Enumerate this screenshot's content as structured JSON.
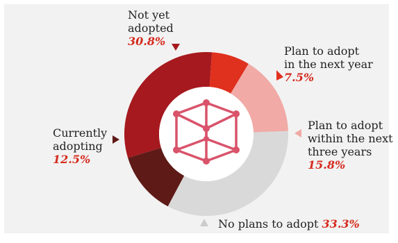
{
  "chart_data": {
    "type": "pie",
    "variant": "donut",
    "title": "",
    "center_icon": "cube-icon",
    "slices": [
      {
        "label": "Not yet adopted",
        "value": 30.8,
        "display": "30.8%",
        "color": "#a6191e"
      },
      {
        "label": "Plan to adopt in the next year",
        "value": 7.5,
        "display": "7.5%",
        "color": "#e0301e"
      },
      {
        "label": "Plan to adopt within the next three years",
        "value": 15.8,
        "display": "15.8%",
        "color": "#f1aaa6"
      },
      {
        "label": "No plans to adopt",
        "value": 33.3,
        "display": "33.3%",
        "color": "#d9d9d9"
      },
      {
        "label": "Currently adopting",
        "value": 12.5,
        "display": "12.5%",
        "color": "#5e1a17"
      }
    ]
  },
  "labels": {
    "not_yet": {
      "lines": [
        "Not yet",
        "adopted"
      ],
      "pct": "30.8%"
    },
    "next_year": {
      "lines": [
        "Plan to adopt",
        "in the next year"
      ],
      "pct": "7.5%"
    },
    "three_years": {
      "lines": [
        "Plan to adopt",
        "within the next",
        "three years"
      ],
      "pct": "15.8%"
    },
    "no_plans": {
      "text": "No plans to adopt",
      "pct": "33.3%"
    },
    "currently": {
      "lines": [
        "Currently",
        "adopting"
      ],
      "pct": "12.5%"
    }
  },
  "colors": {
    "accent": "#d52b1e",
    "background": "#f2f2f2",
    "icon": "#d9536b"
  }
}
